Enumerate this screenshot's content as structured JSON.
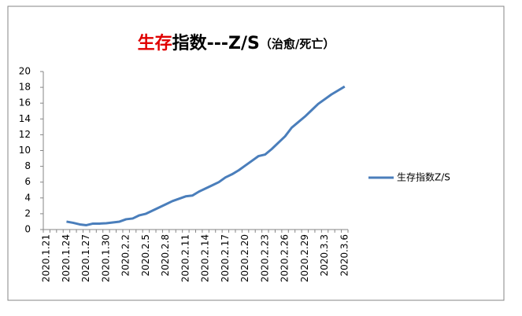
{
  "chart_data": {
    "type": "line",
    "title": {
      "highlight": "生存",
      "main": "指数---Z/S",
      "note": "（治愈/死亡）"
    },
    "categories": [
      "2020.1.21",
      null,
      null,
      "2020.1.24",
      null,
      null,
      "2020.1.27",
      null,
      null,
      "2020.1.30",
      null,
      null,
      "2020.2.2",
      null,
      null,
      "2020.2.5",
      null,
      null,
      "2020.2.8",
      null,
      null,
      "2020.2.11",
      null,
      null,
      "2020.2.14",
      null,
      null,
      "2020.2.17",
      null,
      null,
      "2020.2.20",
      null,
      null,
      "2020.2.23",
      null,
      null,
      "2020.2.26",
      null,
      null,
      "2020.2.29",
      null,
      null,
      "2020.3.3",
      null,
      null,
      "2020.3.6"
    ],
    "series": [
      {
        "name": "生存指数Z/S",
        "color": "#4a7ebb",
        "values": [
          null,
          null,
          null,
          1.0,
          0.85,
          0.65,
          0.55,
          0.75,
          0.75,
          0.8,
          0.9,
          1.0,
          1.3,
          1.4,
          1.8,
          2.0,
          2.4,
          2.8,
          3.2,
          3.6,
          3.9,
          4.2,
          4.3,
          4.8,
          5.2,
          5.6,
          6.0,
          6.6,
          7.0,
          7.5,
          8.1,
          8.7,
          9.3,
          9.5,
          10.2,
          11.0,
          11.8,
          12.9,
          13.6,
          14.3,
          15.1,
          15.9,
          16.5,
          17.1,
          17.6,
          18.1
        ]
      }
    ],
    "ylim": [
      0,
      20
    ],
    "yticks": [
      0,
      2,
      4,
      6,
      8,
      10,
      12,
      14,
      16,
      18,
      20
    ],
    "grid": false,
    "legend": "right"
  }
}
